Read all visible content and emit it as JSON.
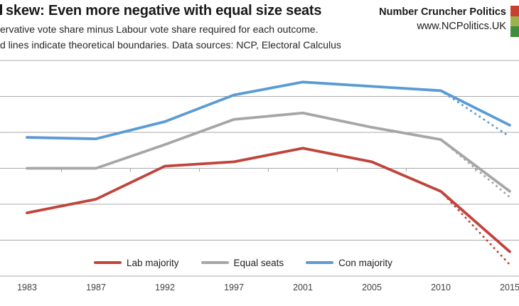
{
  "header": {
    "title_fragment": "skew: Even more negative with equal size seats",
    "subtitle_line1": "ervative vote share minus Labour vote share required for each outcome.",
    "subtitle_line2": "d lines indicate theoretical boundaries. Data sources: NCP, Electoral Calculus",
    "brand_name": "Number Cruncher Politics",
    "brand_url": "www.NCPolitics.UK",
    "logo_colors": [
      "#c8402e",
      "#9cb24c",
      "#3e8e3e"
    ]
  },
  "chart_data": {
    "type": "line",
    "title": "skew: Even more negative with equal size seats (title cropped at left edge)",
    "xlabel": "",
    "ylabel": "",
    "categories": [
      "1983",
      "1987",
      "1992",
      "1997",
      "2001",
      "2005",
      "2010",
      "2015"
    ],
    "series": [
      {
        "name": "Lab majority",
        "color": "#c0443c",
        "style": "solid",
        "values": [
          -6.2,
          -4.3,
          0.3,
          0.9,
          2.8,
          0.9,
          -3.2,
          -11.6
        ]
      },
      {
        "name": "Equal seats",
        "color": "#a6a6a6",
        "style": "solid",
        "values": [
          0,
          0,
          3.3,
          6.8,
          7.7,
          5.7,
          4.0,
          -3.2
        ]
      },
      {
        "name": "Con majority",
        "color": "#5b9bd5",
        "style": "solid",
        "values": [
          4.3,
          4.1,
          6.5,
          10.2,
          12.0,
          11.4,
          10.8,
          6.0
        ]
      },
      {
        "name": "Lab majority theoretical boundary",
        "color": "#c0443c",
        "style": "dotted",
        "values": [
          null,
          null,
          null,
          null,
          null,
          null,
          -3.2,
          -13.4
        ]
      },
      {
        "name": "Equal seats theoretical boundary",
        "color": "#a6a6a6",
        "style": "dotted",
        "values": [
          null,
          null,
          null,
          null,
          null,
          null,
          4.0,
          -4.0
        ]
      },
      {
        "name": "Con majority theoretical boundary",
        "color": "#5b9bd5",
        "style": "dotted",
        "values": [
          null,
          null,
          null,
          null,
          null,
          null,
          10.8,
          4.4
        ]
      }
    ],
    "legend": [
      "Lab majority",
      "Equal seats",
      "Con majority"
    ],
    "legend_position": "bottom",
    "grid": true,
    "gridline_step": 5,
    "ylim": [
      -15,
      15
    ],
    "y_axis_note": "y-axis tick labels are cropped out of the image; scale estimated from gridlines (5 points per gridline, zero on the ticked axis line)",
    "gridline_color": "#a9a9a9",
    "tick_label_color": "#3f3f3f"
  }
}
